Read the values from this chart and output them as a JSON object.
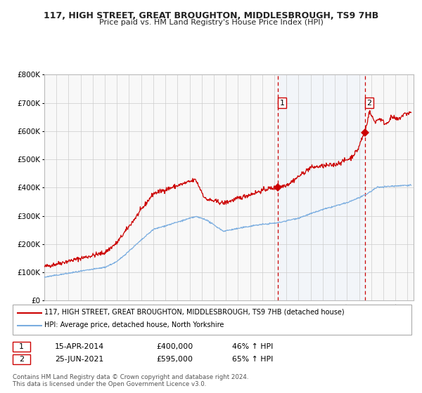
{
  "title": "117, HIGH STREET, GREAT BROUGHTON, MIDDLESBROUGH, TS9 7HB",
  "subtitle": "Price paid vs. HM Land Registry's House Price Index (HPI)",
  "xlim": [
    1995.0,
    2025.5
  ],
  "ylim": [
    0,
    800000
  ],
  "yticks": [
    0,
    100000,
    200000,
    300000,
    400000,
    500000,
    600000,
    700000,
    800000
  ],
  "ytick_labels": [
    "£0",
    "£100K",
    "£200K",
    "£300K",
    "£400K",
    "£500K",
    "£600K",
    "£700K",
    "£800K"
  ],
  "xticks": [
    1995,
    1996,
    1997,
    1998,
    1999,
    2000,
    2001,
    2002,
    2003,
    2004,
    2005,
    2006,
    2007,
    2008,
    2009,
    2010,
    2011,
    2012,
    2013,
    2014,
    2015,
    2016,
    2017,
    2018,
    2019,
    2020,
    2021,
    2022,
    2023,
    2024,
    2025
  ],
  "red_line_color": "#cc0000",
  "blue_line_color": "#7aade0",
  "shade_color": "#ddeeff",
  "vline_color": "#cc0000",
  "marker_color": "#cc0000",
  "sale1_x": 2014.29,
  "sale1_y": 400000,
  "sale2_x": 2021.48,
  "sale2_y": 595000,
  "legend_label_red": "117, HIGH STREET, GREAT BROUGHTON, MIDDLESBROUGH, TS9 7HB (detached house)",
  "legend_label_blue": "HPI: Average price, detached house, North Yorkshire",
  "note1_date": "15-APR-2014",
  "note1_price": "£400,000",
  "note1_hpi": "46% ↑ HPI",
  "note2_date": "25-JUN-2021",
  "note2_price": "£595,000",
  "note2_hpi": "65% ↑ HPI",
  "footer1": "Contains HM Land Registry data © Crown copyright and database right 2024.",
  "footer2": "This data is licensed under the Open Government Licence v3.0.",
  "bg_color": "#ffffff",
  "plot_bg_color": "#f8f8f8"
}
